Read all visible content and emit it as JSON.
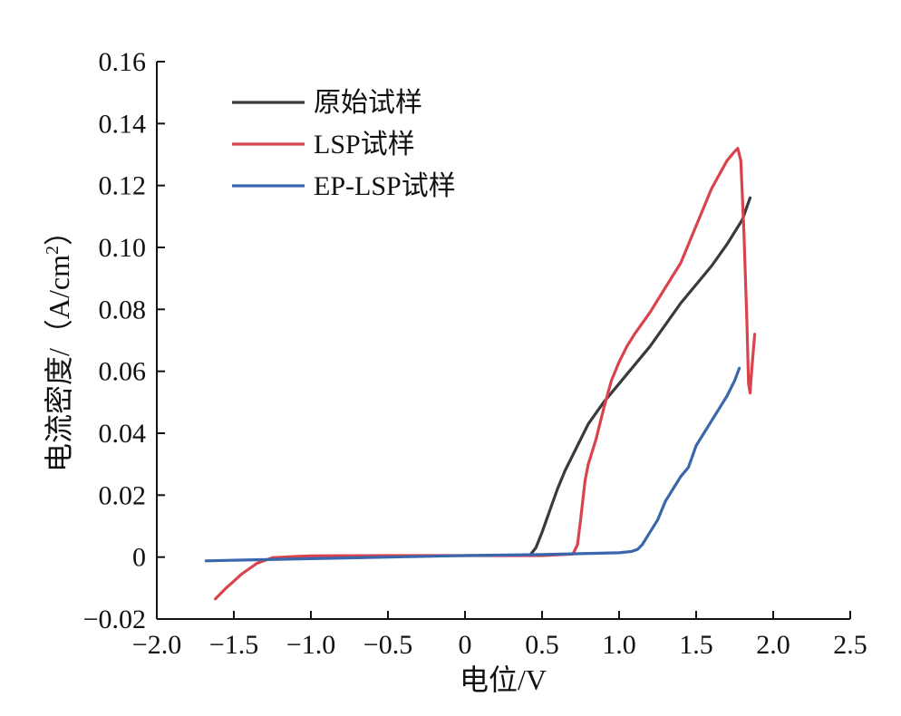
{
  "chart_data": {
    "type": "line",
    "title": "",
    "xlabel": "电位/V",
    "ylabel_main": "电流密度/（A/cm",
    "ylabel_sup": "2",
    "ylabel_close": "）",
    "xlim": [
      -2.0,
      2.5
    ],
    "ylim": [
      -0.02,
      0.16
    ],
    "x_ticks": [
      -2.0,
      -1.5,
      -1.0,
      -0.5,
      0,
      0.5,
      1.0,
      1.5,
      2.0,
      2.5
    ],
    "x_tick_labels": [
      "−2.0",
      "−1.5",
      "−1.0",
      "−0.5",
      "0",
      "0.5",
      "1.0",
      "1.5",
      "2.0",
      "2.5"
    ],
    "y_ticks": [
      -0.02,
      0,
      0.02,
      0.04,
      0.06,
      0.08,
      0.1,
      0.12,
      0.14,
      0.16
    ],
    "y_tick_labels": [
      "−0.02",
      "0",
      "0.02",
      "0.04",
      "0.06",
      "0.08",
      "0.10",
      "0.12",
      "0.14",
      "0.16"
    ],
    "grid": false,
    "legend_position": "top-left",
    "series": [
      {
        "name": "原始试样",
        "color": "#3a3a3a",
        "x": [
          0.42,
          0.46,
          0.5,
          0.55,
          0.6,
          0.65,
          0.7,
          0.8,
          0.9,
          1.0,
          1.1,
          1.2,
          1.3,
          1.4,
          1.5,
          1.6,
          1.7,
          1.8,
          1.85
        ],
        "y": [
          0.0005,
          0.003,
          0.008,
          0.015,
          0.022,
          0.028,
          0.033,
          0.043,
          0.05,
          0.056,
          0.062,
          0.068,
          0.075,
          0.082,
          0.088,
          0.094,
          0.101,
          0.109,
          0.116
        ]
      },
      {
        "name": "LSP试样",
        "color": "#d9434d",
        "x": [
          -1.62,
          -1.55,
          -1.45,
          -1.35,
          -1.25,
          -1.1,
          -1.0,
          -0.5,
          0,
          0.5,
          0.7,
          0.73,
          0.75,
          0.78,
          0.8,
          0.85,
          0.9,
          0.95,
          1.0,
          1.05,
          1.1,
          1.2,
          1.3,
          1.4,
          1.5,
          1.6,
          1.7,
          1.75,
          1.77,
          1.79,
          1.81,
          1.83,
          1.84,
          1.85,
          1.86,
          1.88
        ],
        "y": [
          -0.0135,
          -0.01,
          -0.0055,
          -0.002,
          -0.0002,
          0.0002,
          0.0004,
          0.0005,
          0.0005,
          0.0005,
          0.001,
          0.004,
          0.012,
          0.025,
          0.03,
          0.038,
          0.048,
          0.057,
          0.063,
          0.068,
          0.072,
          0.079,
          0.087,
          0.095,
          0.107,
          0.119,
          0.128,
          0.131,
          0.132,
          0.128,
          0.105,
          0.075,
          0.056,
          0.053,
          0.06,
          0.072
        ]
      },
      {
        "name": "EP-LSP试样",
        "color": "#3a66ab",
        "x": [
          -1.68,
          -1.5,
          -1.0,
          -0.5,
          0,
          0.5,
          1.0,
          1.08,
          1.12,
          1.15,
          1.2,
          1.25,
          1.3,
          1.35,
          1.4,
          1.45,
          1.5,
          1.55,
          1.6,
          1.65,
          1.7,
          1.75,
          1.78
        ],
        "y": [
          -0.0012,
          -0.001,
          -0.0005,
          0,
          0.0005,
          0.0008,
          0.0014,
          0.0018,
          0.0025,
          0.004,
          0.008,
          0.012,
          0.018,
          0.022,
          0.026,
          0.029,
          0.036,
          0.04,
          0.044,
          0.048,
          0.052,
          0.057,
          0.061
        ]
      }
    ]
  }
}
